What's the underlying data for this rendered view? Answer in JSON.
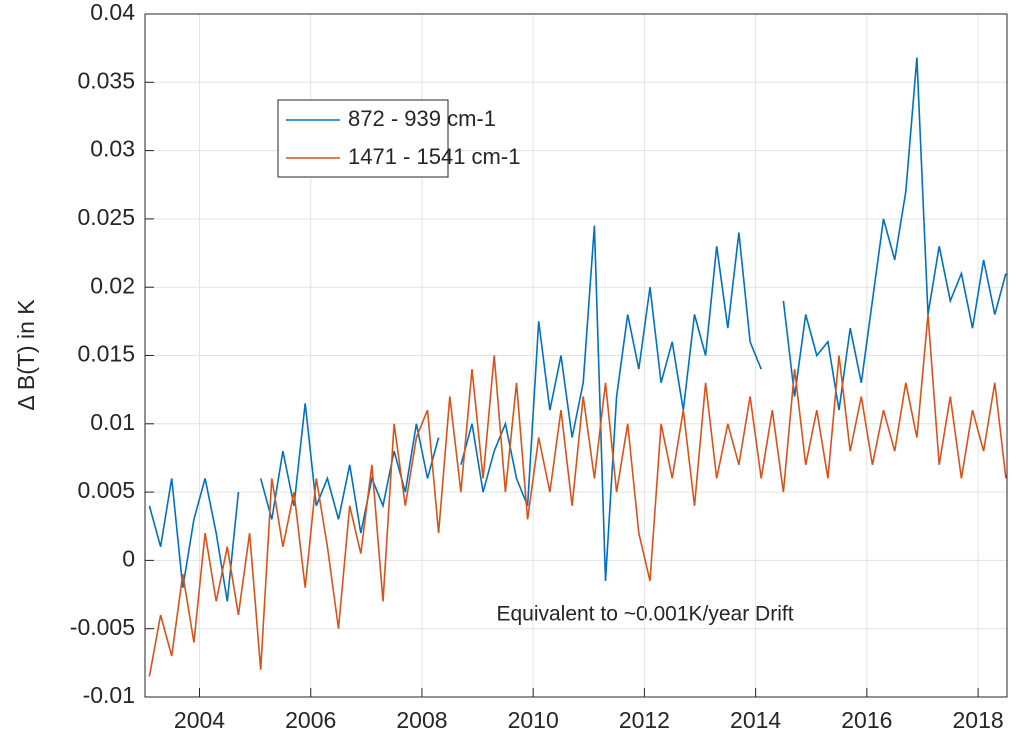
{
  "chart_data": {
    "type": "line",
    "ylabel": "Δ B(T) in K",
    "annotation": "Equivalent to ~0.001K/year Drift",
    "xlim": [
      2003.02,
      2018.52
    ],
    "xticks": [
      2004,
      2006,
      2008,
      2010,
      2012,
      2014,
      2016,
      2018
    ],
    "ylim": [
      -0.01,
      0.04
    ],
    "yticks": [
      -0.01,
      -0.005,
      0,
      0.005,
      0.01,
      0.015,
      0.02,
      0.025,
      0.03,
      0.035,
      0.04
    ],
    "grid": true,
    "legend": "upper left",
    "x": [
      2003.1,
      2003.3,
      2003.5,
      2003.7,
      2003.9,
      2004.1,
      2004.3,
      2004.5,
      2004.7,
      2004.9,
      2005.1,
      2005.3,
      2005.5,
      2005.7,
      2005.9,
      2006.1,
      2006.3,
      2006.5,
      2006.7,
      2006.9,
      2007.1,
      2007.3,
      2007.5,
      2007.7,
      2007.9,
      2008.1,
      2008.3,
      2008.5,
      2008.7,
      2008.9,
      2009.1,
      2009.3,
      2009.5,
      2009.7,
      2009.9,
      2010.1,
      2010.3,
      2010.5,
      2010.7,
      2010.9,
      2011.1,
      2011.3,
      2011.5,
      2011.7,
      2011.9,
      2012.1,
      2012.3,
      2012.5,
      2012.7,
      2012.9,
      2013.1,
      2013.3,
      2013.5,
      2013.7,
      2013.9,
      2014.1,
      2014.3,
      2014.5,
      2014.7,
      2014.9,
      2015.1,
      2015.3,
      2015.5,
      2015.7,
      2015.9,
      2016.1,
      2016.3,
      2016.5,
      2016.7,
      2016.9,
      2017.1,
      2017.3,
      2017.5,
      2017.7,
      2017.9,
      2018.1,
      2018.3,
      2018.5
    ],
    "series": [
      {
        "name": "872 - 939 cm-1",
        "color": "#0072bd",
        "values": [
          0.004,
          0.001,
          0.006,
          -0.002,
          0.003,
          0.006,
          0.002,
          -0.003,
          0.005,
          null,
          0.006,
          0.003,
          0.008,
          0.004,
          0.0115,
          0.004,
          0.006,
          0.003,
          0.007,
          0.002,
          0.006,
          0.004,
          0.008,
          0.005,
          0.01,
          0.006,
          0.009,
          null,
          0.007,
          0.01,
          0.005,
          0.008,
          0.01,
          0.006,
          0.004,
          0.0175,
          0.011,
          0.015,
          0.009,
          0.013,
          0.0245,
          -0.0015,
          0.012,
          0.018,
          0.014,
          0.02,
          0.013,
          0.016,
          0.011,
          0.018,
          0.015,
          0.023,
          0.017,
          0.024,
          0.016,
          0.014,
          null,
          0.019,
          0.012,
          0.018,
          0.015,
          0.016,
          0.011,
          0.017,
          0.013,
          0.019,
          0.025,
          0.022,
          0.027,
          0.0368,
          0.018,
          0.023,
          0.019,
          0.021,
          0.017,
          0.022,
          0.018,
          0.021
        ]
      },
      {
        "name": "1471 - 1541 cm-1",
        "color": "#d95319",
        "values": [
          -0.0085,
          -0.004,
          -0.007,
          -0.001,
          -0.006,
          0.002,
          -0.003,
          0.001,
          -0.004,
          0.002,
          -0.008,
          0.006,
          0.001,
          0.005,
          -0.002,
          0.006,
          0.001,
          -0.005,
          0.004,
          0.0005,
          0.007,
          -0.003,
          0.01,
          0.004,
          0.009,
          0.011,
          0.002,
          0.012,
          0.005,
          0.014,
          0.006,
          0.015,
          0.005,
          0.013,
          0.003,
          0.009,
          0.005,
          0.011,
          0.004,
          0.012,
          0.006,
          0.013,
          0.005,
          0.01,
          0.002,
          -0.0015,
          0.01,
          0.006,
          0.011,
          0.004,
          0.013,
          0.006,
          0.01,
          0.007,
          0.012,
          0.006,
          0.011,
          0.005,
          0.014,
          0.007,
          0.011,
          0.006,
          0.015,
          0.008,
          0.012,
          0.007,
          0.011,
          0.008,
          0.013,
          0.009,
          0.018,
          0.007,
          0.012,
          0.006,
          0.011,
          0.008,
          0.013,
          0.006
        ]
      }
    ]
  }
}
